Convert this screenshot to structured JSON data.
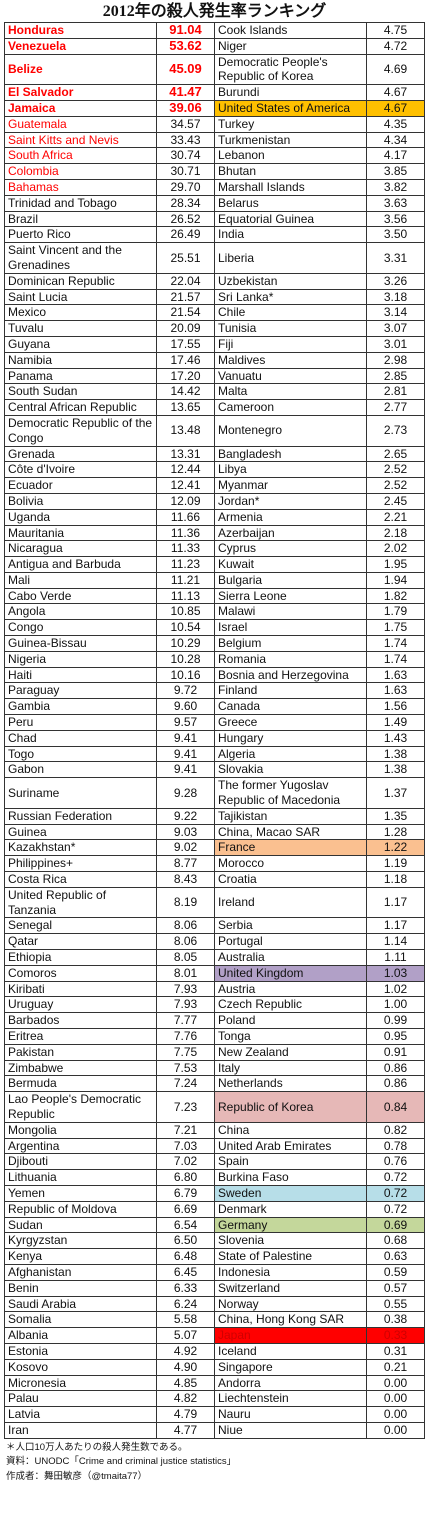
{
  "title": "2012年の殺人発生率ランキング",
  "rows": [
    {
      "left": {
        "name": "Honduras",
        "value": "91.04",
        "color": "#ff0000",
        "bold": true
      },
      "right": {
        "name": "Cook Islands",
        "value": "4.75"
      }
    },
    {
      "left": {
        "name": "Venezuela",
        "value": "53.62",
        "color": "#ff0000",
        "bold": true
      },
      "right": {
        "name": "Niger",
        "value": "4.72"
      }
    },
    {
      "left": {
        "name": "Belize",
        "value": "45.09",
        "color": "#ff0000",
        "bold": true
      },
      "right": {
        "name": "Democratic People's Republic of Korea",
        "value": "4.69"
      }
    },
    {
      "left": {
        "name": "El Salvador",
        "value": "41.47",
        "color": "#ff0000",
        "bold": true
      },
      "right": {
        "name": "Burundi",
        "value": "4.67"
      }
    },
    {
      "left": {
        "name": "Jamaica",
        "value": "39.06",
        "color": "#ff0000",
        "bold": true
      },
      "right": {
        "name": "United States of America",
        "value": "4.67",
        "background": "#ffc000"
      }
    },
    {
      "left": {
        "name": "Guatemala",
        "value": "34.57",
        "color": "#ff0000"
      },
      "right": {
        "name": "Turkey",
        "value": "4.35"
      }
    },
    {
      "left": {
        "name": "Saint Kitts and Nevis",
        "value": "33.43",
        "color": "#ff0000"
      },
      "right": {
        "name": "Turkmenistan",
        "value": "4.34"
      }
    },
    {
      "left": {
        "name": "South Africa",
        "value": "30.74",
        "color": "#ff0000"
      },
      "right": {
        "name": "Lebanon",
        "value": "4.17"
      }
    },
    {
      "left": {
        "name": "Colombia",
        "value": "30.71",
        "color": "#ff0000"
      },
      "right": {
        "name": "Bhutan",
        "value": "3.85"
      }
    },
    {
      "left": {
        "name": "Bahamas",
        "value": "29.70",
        "color": "#ff0000"
      },
      "right": {
        "name": "Marshall Islands",
        "value": "3.82"
      }
    },
    {
      "left": {
        "name": "Trinidad and Tobago",
        "value": "28.34"
      },
      "right": {
        "name": "Belarus",
        "value": "3.63"
      }
    },
    {
      "left": {
        "name": "Brazil",
        "value": "26.52"
      },
      "right": {
        "name": "Equatorial Guinea",
        "value": "3.56"
      }
    },
    {
      "left": {
        "name": "Puerto Rico",
        "value": "26.49"
      },
      "right": {
        "name": "India",
        "value": "3.50"
      }
    },
    {
      "left": {
        "name": "Saint Vincent and the Grenadines",
        "value": "25.51"
      },
      "right": {
        "name": "Liberia",
        "value": "3.31"
      }
    },
    {
      "left": {
        "name": "Dominican Republic",
        "value": "22.04"
      },
      "right": {
        "name": "Uzbekistan",
        "value": "3.26"
      }
    },
    {
      "left": {
        "name": "Saint Lucia",
        "value": "21.57"
      },
      "right": {
        "name": "Sri Lanka*",
        "value": "3.18"
      }
    },
    {
      "left": {
        "name": "Mexico",
        "value": "21.54"
      },
      "right": {
        "name": "Chile",
        "value": "3.14"
      }
    },
    {
      "left": {
        "name": "Tuvalu",
        "value": "20.09"
      },
      "right": {
        "name": "Tunisia",
        "value": "3.07"
      }
    },
    {
      "left": {
        "name": "Guyana",
        "value": "17.55"
      },
      "right": {
        "name": "Fiji",
        "value": "3.01"
      }
    },
    {
      "left": {
        "name": "Namibia",
        "value": "17.46"
      },
      "right": {
        "name": "Maldives",
        "value": "2.98"
      }
    },
    {
      "left": {
        "name": "Panama",
        "value": "17.20"
      },
      "right": {
        "name": "Vanuatu",
        "value": "2.85"
      }
    },
    {
      "left": {
        "name": "South Sudan",
        "value": "14.42"
      },
      "right": {
        "name": "Malta",
        "value": "2.81"
      }
    },
    {
      "left": {
        "name": "Central African Republic",
        "value": "13.65"
      },
      "right": {
        "name": "Cameroon",
        "value": "2.77"
      }
    },
    {
      "left": {
        "name": "Democratic Republic of the Congo",
        "value": "13.48"
      },
      "right": {
        "name": "Montenegro",
        "value": "2.73"
      }
    },
    {
      "left": {
        "name": "Grenada",
        "value": "13.31"
      },
      "right": {
        "name": "Bangladesh",
        "value": "2.65"
      }
    },
    {
      "left": {
        "name": "Côte d'Ivoire",
        "value": "12.44"
      },
      "right": {
        "name": "Libya",
        "value": "2.52"
      }
    },
    {
      "left": {
        "name": "Ecuador",
        "value": "12.41"
      },
      "right": {
        "name": "Myanmar",
        "value": "2.52"
      }
    },
    {
      "left": {
        "name": "Bolivia",
        "value": "12.09"
      },
      "right": {
        "name": "Jordan*",
        "value": "2.45"
      }
    },
    {
      "left": {
        "name": "Uganda",
        "value": "11.66"
      },
      "right": {
        "name": "Armenia",
        "value": "2.21"
      }
    },
    {
      "left": {
        "name": "Mauritania",
        "value": "11.36"
      },
      "right": {
        "name": "Azerbaijan",
        "value": "2.18"
      }
    },
    {
      "left": {
        "name": "Nicaragua",
        "value": "11.33"
      },
      "right": {
        "name": "Cyprus",
        "value": "2.02"
      }
    },
    {
      "left": {
        "name": "Antigua and Barbuda",
        "value": "11.23"
      },
      "right": {
        "name": "Kuwait",
        "value": "1.95"
      }
    },
    {
      "left": {
        "name": "Mali",
        "value": "11.21"
      },
      "right": {
        "name": "Bulgaria",
        "value": "1.94"
      }
    },
    {
      "left": {
        "name": "Cabo Verde",
        "value": "11.13"
      },
      "right": {
        "name": "Sierra Leone",
        "value": "1.82"
      }
    },
    {
      "left": {
        "name": "Angola",
        "value": "10.85"
      },
      "right": {
        "name": "Malawi",
        "value": "1.79"
      }
    },
    {
      "left": {
        "name": "Congo",
        "value": "10.54"
      },
      "right": {
        "name": "Israel",
        "value": "1.75"
      }
    },
    {
      "left": {
        "name": "Guinea-Bissau",
        "value": "10.29"
      },
      "right": {
        "name": "Belgium",
        "value": "1.74"
      }
    },
    {
      "left": {
        "name": "Nigeria",
        "value": "10.28"
      },
      "right": {
        "name": "Romania",
        "value": "1.74"
      }
    },
    {
      "left": {
        "name": "Haiti",
        "value": "10.16"
      },
      "right": {
        "name": "Bosnia and Herzegovina",
        "value": "1.63"
      }
    },
    {
      "left": {
        "name": "Paraguay",
        "value": "9.72"
      },
      "right": {
        "name": "Finland",
        "value": "1.63"
      }
    },
    {
      "left": {
        "name": "Gambia",
        "value": "9.60"
      },
      "right": {
        "name": "Canada",
        "value": "1.56"
      }
    },
    {
      "left": {
        "name": "Peru",
        "value": "9.57"
      },
      "right": {
        "name": "Greece",
        "value": "1.49"
      }
    },
    {
      "left": {
        "name": "Chad",
        "value": "9.41"
      },
      "right": {
        "name": "Hungary",
        "value": "1.43"
      }
    },
    {
      "left": {
        "name": "Togo",
        "value": "9.41"
      },
      "right": {
        "name": "Algeria",
        "value": "1.38"
      }
    },
    {
      "left": {
        "name": "Gabon",
        "value": "9.41"
      },
      "right": {
        "name": "Slovakia",
        "value": "1.38"
      }
    },
    {
      "left": {
        "name": "Suriname",
        "value": "9.28"
      },
      "right": {
        "name": "The former Yugoslav Republic of Macedonia",
        "value": "1.37"
      }
    },
    {
      "left": {
        "name": "Russian Federation",
        "value": "9.22"
      },
      "right": {
        "name": "Tajikistan",
        "value": "1.35"
      }
    },
    {
      "left": {
        "name": "Guinea",
        "value": "9.03"
      },
      "right": {
        "name": "China, Macao SAR",
        "value": "1.28"
      }
    },
    {
      "left": {
        "name": "Kazakhstan*",
        "value": "9.02"
      },
      "right": {
        "name": "France",
        "value": "1.22",
        "background": "#fac090"
      }
    },
    {
      "left": {
        "name": "Philippines+",
        "value": "8.77"
      },
      "right": {
        "name": "Morocco",
        "value": "1.19"
      }
    },
    {
      "left": {
        "name": "Costa Rica",
        "value": "8.43"
      },
      "right": {
        "name": "Croatia",
        "value": "1.18"
      }
    },
    {
      "left": {
        "name": "United Republic of Tanzania",
        "value": "8.19"
      },
      "right": {
        "name": "Ireland",
        "value": "1.17"
      }
    },
    {
      "left": {
        "name": "Senegal",
        "value": "8.06"
      },
      "right": {
        "name": "Serbia",
        "value": "1.17"
      }
    },
    {
      "left": {
        "name": "Qatar",
        "value": "8.06"
      },
      "right": {
        "name": "Portugal",
        "value": "1.14"
      }
    },
    {
      "left": {
        "name": "Ethiopia",
        "value": "8.05"
      },
      "right": {
        "name": "Australia",
        "value": "1.11"
      }
    },
    {
      "left": {
        "name": "Comoros",
        "value": "8.01"
      },
      "right": {
        "name": "United Kingdom",
        "value": "1.03",
        "background": "#b1a0c7"
      }
    },
    {
      "left": {
        "name": "Kiribati",
        "value": "7.93"
      },
      "right": {
        "name": "Austria",
        "value": "1.02"
      }
    },
    {
      "left": {
        "name": "Uruguay",
        "value": "7.93"
      },
      "right": {
        "name": "Czech Republic",
        "value": "1.00"
      }
    },
    {
      "left": {
        "name": "Barbados",
        "value": "7.77"
      },
      "right": {
        "name": "Poland",
        "value": "0.99"
      }
    },
    {
      "left": {
        "name": "Eritrea",
        "value": "7.76"
      },
      "right": {
        "name": "Tonga",
        "value": "0.95"
      }
    },
    {
      "left": {
        "name": "Pakistan",
        "value": "7.75"
      },
      "right": {
        "name": "New Zealand",
        "value": "0.91"
      }
    },
    {
      "left": {
        "name": "Zimbabwe",
        "value": "7.53"
      },
      "right": {
        "name": "Italy",
        "value": "0.86"
      }
    },
    {
      "left": {
        "name": "Bermuda",
        "value": "7.24"
      },
      "right": {
        "name": "Netherlands",
        "value": "0.86"
      }
    },
    {
      "left": {
        "name": "Lao People's Democratic Republic",
        "value": "7.23"
      },
      "right": {
        "name": "Republic of Korea",
        "value": "0.84",
        "background": "#e6b8b7"
      }
    },
    {
      "left": {
        "name": "Mongolia",
        "value": "7.21"
      },
      "right": {
        "name": "China",
        "value": "0.82"
      }
    },
    {
      "left": {
        "name": "Argentina",
        "value": "7.03"
      },
      "right": {
        "name": "United Arab Emirates",
        "value": "0.78"
      }
    },
    {
      "left": {
        "name": "Djibouti",
        "value": "7.02"
      },
      "right": {
        "name": "Spain",
        "value": "0.76"
      }
    },
    {
      "left": {
        "name": "Lithuania",
        "value": "6.80"
      },
      "right": {
        "name": "Burkina Faso",
        "value": "0.72"
      }
    },
    {
      "left": {
        "name": "Yemen",
        "value": "6.79"
      },
      "right": {
        "name": "Sweden",
        "value": "0.72",
        "background": "#b7dee8"
      }
    },
    {
      "left": {
        "name": "Republic of Moldova",
        "value": "6.69"
      },
      "right": {
        "name": "Denmark",
        "value": "0.72"
      }
    },
    {
      "left": {
        "name": "Sudan",
        "value": "6.54"
      },
      "right": {
        "name": "Germany",
        "value": "0.69",
        "background": "#c4d79b"
      }
    },
    {
      "left": {
        "name": "Kyrgyzstan",
        "value": "6.50"
      },
      "right": {
        "name": "Slovenia",
        "value": "0.68"
      }
    },
    {
      "left": {
        "name": "Kenya",
        "value": "6.48"
      },
      "right": {
        "name": "State of Palestine",
        "value": "0.63"
      }
    },
    {
      "left": {
        "name": "Afghanistan",
        "value": "6.45"
      },
      "right": {
        "name": "Indonesia",
        "value": "0.59"
      }
    },
    {
      "left": {
        "name": "Benin",
        "value": "6.33"
      },
      "right": {
        "name": "Switzerland",
        "value": "0.57"
      }
    },
    {
      "left": {
        "name": "Saudi Arabia",
        "value": "6.24"
      },
      "right": {
        "name": "Norway",
        "value": "0.55"
      }
    },
    {
      "left": {
        "name": "Somalia",
        "value": "5.58"
      },
      "right": {
        "name": "China, Hong Kong SAR",
        "value": "0.38"
      }
    },
    {
      "left": {
        "name": "Albania",
        "value": "5.07"
      },
      "right": {
        "name": "Japan",
        "value": "0.33",
        "background": "#ff0000",
        "color": "#d00000"
      }
    },
    {
      "left": {
        "name": "Estonia",
        "value": "4.92"
      },
      "right": {
        "name": "Iceland",
        "value": "0.31"
      }
    },
    {
      "left": {
        "name": "Kosovo",
        "value": "4.90"
      },
      "right": {
        "name": "Singapore",
        "value": "0.21"
      }
    },
    {
      "left": {
        "name": "Micronesia",
        "value": "4.85"
      },
      "right": {
        "name": "Andorra",
        "value": "0.00"
      }
    },
    {
      "left": {
        "name": "Palau",
        "value": "4.82"
      },
      "right": {
        "name": "Liechtenstein",
        "value": "0.00"
      }
    },
    {
      "left": {
        "name": "Latvia",
        "value": "4.79"
      },
      "right": {
        "name": "Nauru",
        "value": "0.00"
      }
    },
    {
      "left": {
        "name": "Iran",
        "value": "4.77"
      },
      "right": {
        "name": "Niue",
        "value": "0.00"
      }
    }
  ],
  "notes": [
    "＊人口10万人あたりの殺人発生数である。",
    "資料：UNODC「Crime and criminal justice statistics」",
    "作成者：舞田敏彦（@tmaita77）"
  ]
}
